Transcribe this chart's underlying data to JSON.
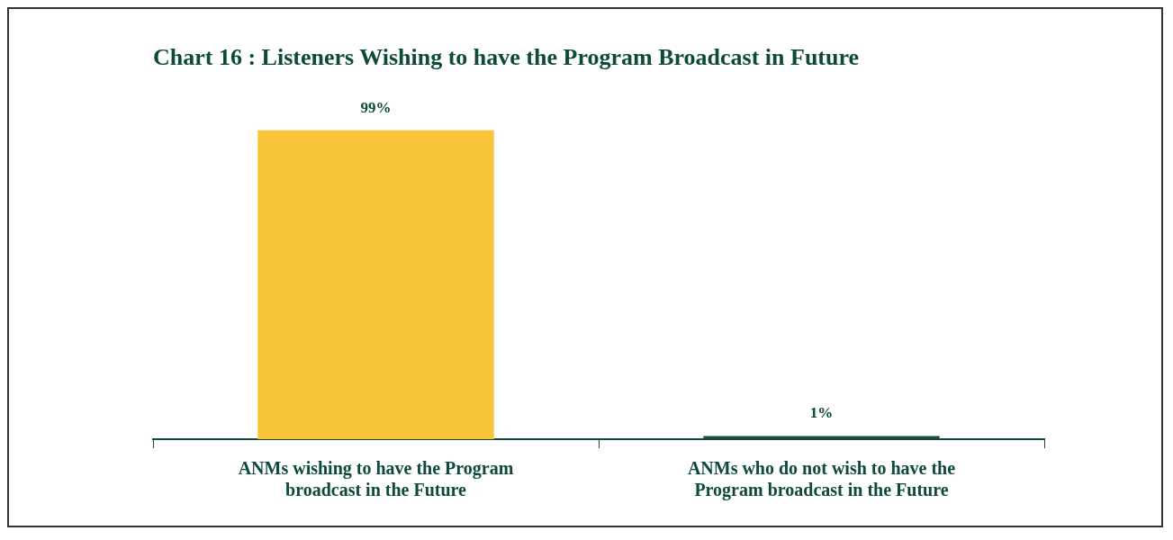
{
  "chart_data": {
    "type": "bar",
    "title": "Chart 16 : Listeners Wishing to have the Program Broadcast in Future",
    "categories": [
      "ANMs wishing to have the Program broadcast in the Future",
      "ANMs who do not wish to have the Program broadcast in the Future"
    ],
    "values": [
      99,
      1
    ],
    "colors": [
      "#f8c53a",
      "#1f4a38"
    ],
    "value_labels": [
      "99%",
      "1%"
    ],
    "legend": false
  }
}
